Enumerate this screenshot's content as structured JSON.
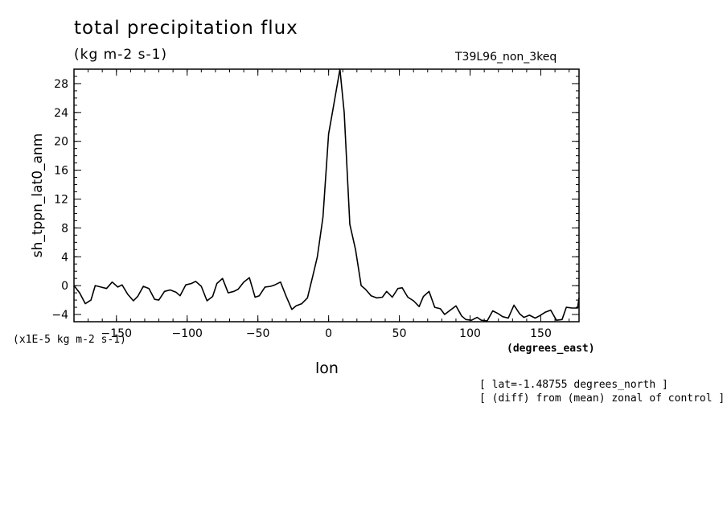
{
  "header": {
    "title": "total precipitation flux",
    "units": "(kg m-2 s-1)",
    "run_label": "T39L96_non_3keq"
  },
  "footer": {
    "scale_label": "(x1E-5 kg m-2 s-1)",
    "x_units": "(degrees_east)",
    "note_lat": "[ lat=-1.48755 degrees_north ]",
    "note_diff": "[ (diff) from (mean) zonal of control ]"
  },
  "chart_data": {
    "type": "line",
    "xlabel": "lon",
    "ylabel": "sh_tppn_lat0_anm",
    "xlim": [
      -180,
      177
    ],
    "ylim": [
      -5,
      30
    ],
    "xticks": [
      -150,
      -100,
      -50,
      0,
      50,
      100,
      150
    ],
    "yticks": [
      -4,
      0,
      4,
      8,
      12,
      16,
      20,
      24,
      28
    ],
    "grid": false,
    "series": [
      {
        "x": [
          -180,
          -176,
          -172,
          -168,
          -165,
          -161,
          -157,
          -153,
          -149,
          -146,
          -142,
          -138,
          -135,
          -131,
          -127,
          -123,
          -120,
          -116,
          -112,
          -108,
          -105,
          -101,
          -97,
          -94,
          -90,
          -86,
          -82,
          -79,
          -75,
          -71,
          -67,
          -64,
          -60,
          -56,
          -52,
          -49,
          -45,
          -41,
          -38,
          -34,
          -30,
          -26,
          -23,
          -19,
          -15,
          -11,
          -8,
          -4,
          0,
          4,
          8,
          11,
          15,
          19,
          23,
          26,
          30,
          34,
          38,
          41,
          45,
          49,
          52,
          56,
          60,
          64,
          67,
          71,
          75,
          79,
          82,
          86,
          90,
          94,
          97,
          101,
          105,
          108,
          112,
          116,
          120,
          123,
          127,
          131,
          135,
          138,
          142,
          146,
          149,
          153,
          157,
          161,
          165,
          168,
          172,
          176,
          177
        ],
        "values": [
          0,
          -1,
          -2.5,
          -2,
          0,
          -0.2,
          -0.4,
          0.5,
          -0.2,
          0.1,
          -1.2,
          -2.1,
          -1.5,
          -0.1,
          -0.4,
          -1.9,
          -2,
          -0.8,
          -0.6,
          -0.9,
          -1.4,
          0.1,
          0.3,
          0.6,
          -0.1,
          -2.1,
          -1.5,
          0.3,
          1,
          -1,
          -0.8,
          -0.5,
          0.5,
          1.1,
          -1.6,
          -1.4,
          -0.2,
          -0.1,
          0.1,
          0.5,
          -1.5,
          -3.3,
          -2.8,
          -2.5,
          -1.7,
          1.5,
          4,
          9.5,
          21,
          25.5,
          30,
          24,
          8.5,
          5,
          0,
          -0.5,
          -1.4,
          -1.7,
          -1.6,
          -0.8,
          -1.6,
          -0.4,
          -0.3,
          -1.6,
          -2.1,
          -2.9,
          -1.5,
          -0.8,
          -3,
          -3.2,
          -4,
          -3.4,
          -2.8,
          -4.2,
          -4.7,
          -4.8,
          -4.4,
          -4.8,
          -4.9,
          -3.5,
          -3.9,
          -4.3,
          -4.5,
          -2.7,
          -3.9,
          -4.4,
          -4.1,
          -4.5,
          -4.2,
          -3.7,
          -3.4,
          -4.8,
          -4.7,
          -3,
          -3.1,
          -3.1,
          -1.7
        ]
      }
    ]
  }
}
